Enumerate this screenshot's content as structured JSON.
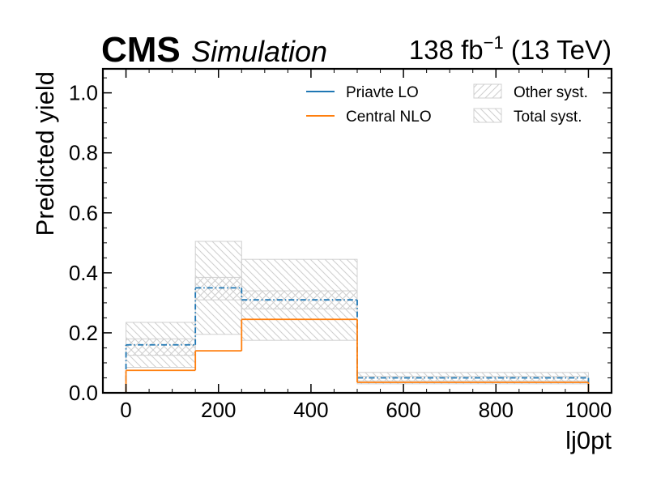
{
  "header": {
    "experiment": "CMS",
    "subtitle": "Simulation",
    "lumi_value": "138 fb",
    "lumi_exp": "−1",
    "lumi_energy": "(13 TeV)"
  },
  "chart_data": {
    "type": "histogram",
    "xlabel": "lj0pt",
    "ylabel": "Predicted yield",
    "xlim": [
      -50,
      1050
    ],
    "ylim": [
      0,
      1.08
    ],
    "xticks": [
      0,
      200,
      400,
      600,
      800,
      1000
    ],
    "yticks": [
      0.0,
      0.2,
      0.4,
      0.6,
      0.8,
      1.0
    ],
    "ytick_labels": [
      "0.0",
      "0.2",
      "0.4",
      "0.6",
      "0.8",
      "1.0"
    ],
    "bin_edges": [
      0,
      150,
      250,
      500,
      1000
    ],
    "series": [
      {
        "name": "Priavte LO",
        "color": "#1f77b4",
        "style": "dashdot",
        "values": [
          0.16,
          0.35,
          0.31,
          0.05
        ]
      },
      {
        "name": "Central NLO",
        "color": "#ff7f0e",
        "style": "solid",
        "values": [
          0.075,
          0.14,
          0.245,
          0.035
        ]
      }
    ],
    "bands": [
      {
        "name": "Other syst.",
        "hatch": "forward",
        "lower": [
          0.125,
          0.31,
          0.28,
          0.04
        ],
        "upper": [
          0.18,
          0.385,
          0.34,
          0.055
        ]
      },
      {
        "name": "Total syst.",
        "hatch": "back",
        "lower": [
          0.085,
          0.195,
          0.175,
          0.03
        ],
        "upper": [
          0.235,
          0.505,
          0.445,
          0.068
        ]
      }
    ],
    "legend_placement": "top-right",
    "grid": false
  }
}
